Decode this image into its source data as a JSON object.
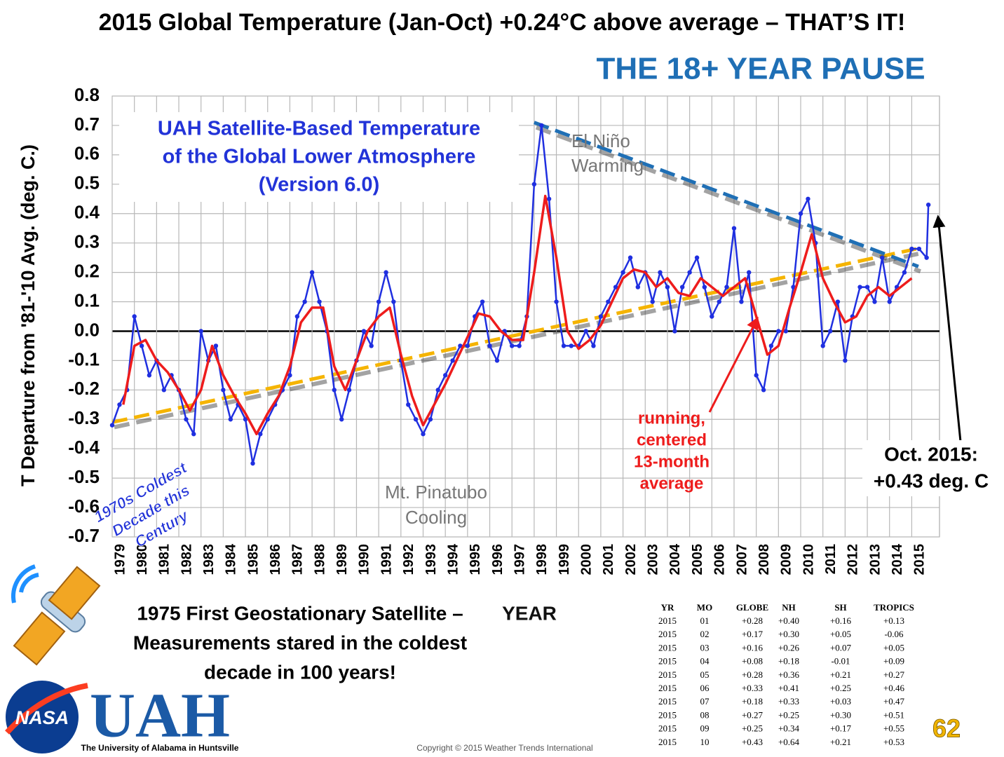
{
  "chart_data": {
    "type": "line",
    "title": "2015 Global Temperature (Jan-Oct) +0.24°C above average – THAT’S IT!",
    "subtitle": "THE 18+ YEAR PAUSE",
    "y_label": "T Departure from '81-'10 Avg. (deg. C.)",
    "x_label": "YEAR",
    "xlim": [
      1979,
      2016.25
    ],
    "xticks": [
      1979,
      1980,
      1981,
      1982,
      1983,
      1984,
      1985,
      1986,
      1987,
      1988,
      1989,
      1990,
      1991,
      1992,
      1993,
      1994,
      1995,
      1996,
      1997,
      1998,
      1999,
      2000,
      2001,
      2002,
      2003,
      2004,
      2005,
      2006,
      2007,
      2008,
      2009,
      2010,
      2011,
      2012,
      2013,
      2014,
      2015
    ],
    "ylim": [
      -0.7,
      0.8
    ],
    "yticks": [
      0.8,
      0.7,
      0.6,
      0.5,
      0.4,
      0.3,
      0.2,
      0.1,
      {
        "value": 0,
        "label": "0.0"
      },
      -0.1,
      -0.2,
      -0.3,
      -0.4,
      -0.5,
      -0.6,
      -0.7
    ],
    "grid": true,
    "series": [
      {
        "color": "#1f2fe0",
        "x": [
          1979,
          1979.33,
          1979.67,
          1980,
          1980.33,
          1980.67,
          1981,
          1981.33,
          1981.67,
          1982,
          1982.33,
          1982.67,
          1983,
          1983.33,
          1983.67,
          1984,
          1984.33,
          1984.67,
          1985,
          1985.33,
          1985.67,
          1986,
          1986.33,
          1986.67,
          1987,
          1987.33,
          1987.67,
          1988,
          1988.33,
          1988.67,
          1989,
          1989.33,
          1989.67,
          1990,
          1990.33,
          1990.67,
          1991,
          1991.33,
          1991.67,
          1992,
          1992.33,
          1992.67,
          1993,
          1993.33,
          1993.67,
          1994,
          1994.33,
          1994.67,
          1995,
          1995.33,
          1995.67,
          1996,
          1996.33,
          1996.67,
          1997,
          1997.33,
          1997.67,
          1998,
          1998.33,
          1998.67,
          1999,
          1999.33,
          1999.67,
          2000,
          2000.33,
          2000.67,
          2001,
          2001.33,
          2001.67,
          2002,
          2002.33,
          2002.67,
          2003,
          2003.33,
          2003.67,
          2004,
          2004.33,
          2004.67,
          2005,
          2005.33,
          2005.67,
          2006,
          2006.33,
          2006.67,
          2007,
          2007.33,
          2007.67,
          2008,
          2008.33,
          2008.67,
          2009,
          2009.33,
          2009.67,
          2010,
          2010.33,
          2010.67,
          2011,
          2011.33,
          2011.67,
          2012,
          2012.33,
          2012.67,
          2013,
          2013.33,
          2013.67,
          2014,
          2014.33,
          2014.67,
          2015,
          2015.33,
          2015.67,
          2015.75
        ],
        "values": [
          -0.32,
          -0.25,
          -0.2,
          0.05,
          -0.05,
          -0.15,
          -0.1,
          -0.2,
          -0.15,
          -0.2,
          -0.3,
          -0.35,
          0.0,
          -0.1,
          -0.05,
          -0.2,
          -0.3,
          -0.25,
          -0.3,
          -0.45,
          -0.35,
          -0.3,
          -0.25,
          -0.2,
          -0.15,
          0.05,
          0.1,
          0.2,
          0.1,
          0.0,
          -0.2,
          -0.3,
          -0.2,
          -0.1,
          0.0,
          -0.05,
          0.1,
          0.2,
          0.1,
          -0.1,
          -0.25,
          -0.3,
          -0.35,
          -0.3,
          -0.2,
          -0.15,
          -0.1,
          -0.05,
          -0.05,
          0.05,
          0.1,
          -0.05,
          -0.1,
          0.0,
          -0.05,
          -0.05,
          0.05,
          0.5,
          0.7,
          0.45,
          0.1,
          -0.05,
          -0.05,
          -0.05,
          0.0,
          -0.05,
          0.05,
          0.1,
          0.15,
          0.2,
          0.25,
          0.15,
          0.2,
          0.1,
          0.2,
          0.15,
          0.0,
          0.15,
          0.2,
          0.25,
          0.15,
          0.05,
          0.1,
          0.15,
          0.35,
          0.1,
          0.2,
          -0.15,
          -0.2,
          -0.05,
          0.0,
          0.0,
          0.15,
          0.4,
          0.45,
          0.3,
          -0.05,
          0.0,
          0.1,
          -0.1,
          0.05,
          0.15,
          0.15,
          0.1,
          0.25,
          0.1,
          0.15,
          0.2,
          0.28,
          0.28,
          0.25,
          0.43
        ]
      },
      {
        "color": "#ee1c1c",
        "x": [
          1979.5,
          1980,
          1980.5,
          1981,
          1981.5,
          1982,
          1982.5,
          1983,
          1983.5,
          1984,
          1984.5,
          1985,
          1985.5,
          1986,
          1986.5,
          1987,
          1987.5,
          1988,
          1988.5,
          1989,
          1989.5,
          1990,
          1990.5,
          1991,
          1991.5,
          1992,
          1992.5,
          1993,
          1993.5,
          1994,
          1994.5,
          1995,
          1995.5,
          1996,
          1996.5,
          1997,
          1997.5,
          1998,
          1998.5,
          1999,
          1999.5,
          2000,
          2000.5,
          2001,
          2001.5,
          2002,
          2002.5,
          2003,
          2003.5,
          2004,
          2004.5,
          2005,
          2005.5,
          2006,
          2006.5,
          2007,
          2007.5,
          2008,
          2008.5,
          2009,
          2009.5,
          2010,
          2010.5,
          2011,
          2011.5,
          2012,
          2012.5,
          2013,
          2013.5,
          2014,
          2014.5,
          2015
        ],
        "values": [
          -0.25,
          -0.05,
          -0.03,
          -0.1,
          -0.14,
          -0.2,
          -0.27,
          -0.2,
          -0.05,
          -0.15,
          -0.22,
          -0.28,
          -0.35,
          -0.28,
          -0.22,
          -0.12,
          0.03,
          0.08,
          0.08,
          -0.12,
          -0.2,
          -0.1,
          0.0,
          0.05,
          0.08,
          -0.08,
          -0.22,
          -0.32,
          -0.25,
          -0.18,
          -0.1,
          -0.02,
          0.06,
          0.05,
          0.0,
          -0.03,
          -0.03,
          0.2,
          0.46,
          0.25,
          0.0,
          -0.06,
          -0.03,
          0.02,
          0.1,
          0.18,
          0.21,
          0.2,
          0.15,
          0.18,
          0.13,
          0.12,
          0.18,
          0.15,
          0.12,
          0.15,
          0.18,
          0.05,
          -0.08,
          -0.05,
          0.08,
          0.2,
          0.33,
          0.18,
          0.1,
          0.03,
          0.05,
          0.12,
          0.15,
          0.12,
          0.15,
          0.18
        ]
      }
    ],
    "trend_lines": [
      {
        "color": "#f5b400",
        "x": [
          1979,
          2015.2
        ],
        "values": [
          -0.31,
          0.28
        ]
      },
      {
        "color": "#1f6fb5",
        "x": [
          1998,
          2015.3
        ],
        "values": [
          0.71,
          0.22
        ]
      }
    ],
    "annotations": {
      "dataset": [
        "UAH Satellite-Based Temperature",
        "of the Global Lower Atmosphere",
        "(Version 6.0)"
      ],
      "el_nino": [
        "El Niño",
        "Warming"
      ],
      "pinatubo": [
        "Mt. Pinatubo",
        "Cooling"
      ],
      "running": [
        "running,",
        "centered",
        "13-month",
        "average"
      ],
      "october": [
        "Oct. 2015:",
        "+0.43 deg. C"
      ],
      "coldest": [
        "1970s Coldest",
        "Decade this",
        "Century"
      ],
      "satellite": [
        "1975 First Geostationary Satellite –",
        "Measurements stared in the coldest",
        "decade in 100  years!"
      ]
    }
  },
  "table": {
    "header": [
      "YR",
      "MO",
      "GLOBE",
      "NH",
      "SH",
      "TROPICS"
    ],
    "rows": [
      [
        "2015",
        "01",
        "+0.28",
        "+0.40",
        "+0.16",
        "+0.13"
      ],
      [
        "2015",
        "02",
        "+0.17",
        "+0.30",
        "+0.05",
        "-0.06"
      ],
      [
        "2015",
        "03",
        "+0.16",
        "+0.26",
        "+0.07",
        "+0.05"
      ],
      [
        "2015",
        "04",
        "+0.08",
        "+0.18",
        "-0.01",
        "+0.09"
      ],
      [
        "2015",
        "05",
        "+0.28",
        "+0.36",
        "+0.21",
        "+0.27"
      ],
      [
        "2015",
        "06",
        "+0.33",
        "+0.41",
        "+0.25",
        "+0.46"
      ],
      [
        "2015",
        "07",
        "+0.18",
        "+0.33",
        "+0.03",
        "+0.47"
      ],
      [
        "2015",
        "08",
        "+0.27",
        "+0.25",
        "+0.30",
        "+0.51"
      ],
      [
        "2015",
        "09",
        "+0.25",
        "+0.34",
        "+0.17",
        "+0.55"
      ],
      [
        "2015",
        "10",
        "+0.43",
        "+0.64",
        "+0.21",
        "+0.53"
      ]
    ]
  },
  "logos": {
    "nasa": "NASA",
    "uah": "UAH",
    "uah_name": "The University of Alabama in Huntsville"
  },
  "footer": {
    "copyright": "Copyright © 2015 Weather Trends International",
    "page": "62"
  }
}
